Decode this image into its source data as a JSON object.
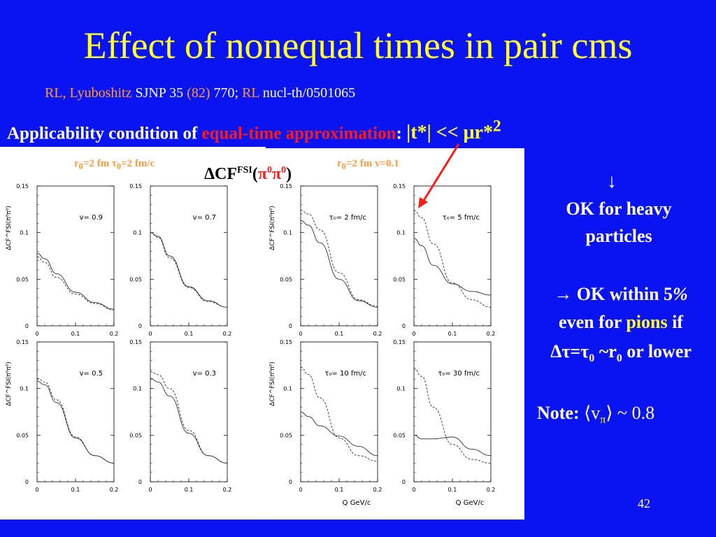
{
  "slide": {
    "title": "Effect of nonequal times in pair cms",
    "ref_part1": "RL, Lyuboshitz",
    "ref_part2": " SJNP 35 ",
    "ref_part3": "(82)",
    "ref_part4": " 770; ",
    "ref_part5": "RL",
    "ref_part6": " nucl-th/0501065",
    "cond_part1": "Applicability condition of ",
    "cond_part2": "equal-time approximation",
    "cond_part3": ":  ",
    "cond_part4": "|t*| << μr*",
    "cond_part4_sup": "2",
    "left_plot_title_a": "r",
    "left_plot_title_sub0": "0",
    "left_plot_title_b": "=2 fm  τ",
    "left_plot_title_sub1": "0",
    "left_plot_title_c": "=2 fm/c",
    "cf_label_a": "ΔCF",
    "cf_label_sup": "FSI",
    "cf_label_b": "(",
    "cf_label_pi1": "π",
    "cf_label_pi1_sup": "0",
    "cf_label_pi2": "π",
    "cf_label_pi2_sup": "0",
    "cf_label_c": ")",
    "right_plot_title_a": "r",
    "right_plot_title_sub0": "0",
    "right_plot_title_b": "=2 fm  v=0.1",
    "arrow_down": "↓",
    "ok_heavy_1": "OK for heavy",
    "ok_heavy_2": "particles",
    "ok5_1a": "→ OK within 5",
    "ok5_1b": "%",
    "ok5_2a": "even for ",
    "ok5_2b": "pions",
    "ok5_2c": " if",
    "ok5_3a": "Δτ=τ",
    "ok5_3sub": "0",
    "ok5_3b": " ~r",
    "ok5_3sub2": "0",
    "ok5_3c": " or lower",
    "note_a": "Note: ",
    "note_b": "⟨v",
    "note_sub": "π",
    "note_c": "⟩ ~ 0.8",
    "page_number": "42"
  },
  "chart_data": [
    {
      "type": "line",
      "panel": "v= 0.9",
      "x": [
        0,
        0.02,
        0.05,
        0.1,
        0.15,
        0.2
      ],
      "series": [
        {
          "style": "solid",
          "values": [
            0.078,
            0.072,
            0.056,
            0.036,
            0.025,
            0.018
          ]
        },
        {
          "style": "dashed",
          "values": [
            0.074,
            0.068,
            0.052,
            0.034,
            0.024,
            0.017
          ]
        }
      ],
      "ylim": [
        0,
        0.15
      ],
      "xlim": [
        0,
        0.2
      ],
      "yticks": [
        "0",
        "0.05",
        "0.1",
        "0.15"
      ],
      "xticks": [
        "0",
        "0.1",
        "0.2"
      ],
      "ylabel": "ΔCF^FSI(π⁰π⁰)"
    },
    {
      "type": "line",
      "panel": "v= 0.7",
      "x": [
        0,
        0.02,
        0.05,
        0.1,
        0.15,
        0.2
      ],
      "series": [
        {
          "style": "solid",
          "values": [
            0.1,
            0.096,
            0.075,
            0.042,
            0.027,
            0.02
          ]
        },
        {
          "style": "dashed",
          "values": [
            0.1,
            0.095,
            0.073,
            0.041,
            0.026,
            0.02
          ]
        }
      ],
      "ylim": [
        0,
        0.15
      ],
      "xlim": [
        0,
        0.2
      ],
      "yticks": [
        "0",
        "0.05",
        "0.1",
        "0.15"
      ],
      "xticks": [
        "0",
        "0.1",
        "0.2"
      ]
    },
    {
      "type": "line",
      "panel": "τ₀= 2 fm/c",
      "x": [
        0,
        0.02,
        0.05,
        0.1,
        0.15,
        0.2
      ],
      "series": [
        {
          "style": "solid",
          "values": [
            0.113,
            0.108,
            0.089,
            0.05,
            0.027,
            0.02
          ]
        },
        {
          "style": "dashed",
          "values": [
            0.124,
            0.12,
            0.103,
            0.057,
            0.028,
            0.021
          ]
        }
      ],
      "ylim": [
        0,
        0.15
      ],
      "xlim": [
        0,
        0.2
      ],
      "yticks": [
        "0",
        "0.05",
        "0.1",
        "0.15"
      ],
      "xticks": [
        "0",
        "0.1",
        "0.2"
      ],
      "ylabel": "ΔCF^FSI(π⁰π⁰)"
    },
    {
      "type": "line",
      "panel": "τ₀= 5 fm/c",
      "x": [
        0,
        0.02,
        0.05,
        0.1,
        0.15,
        0.2
      ],
      "series": [
        {
          "style": "solid",
          "values": [
            0.094,
            0.086,
            0.065,
            0.045,
            0.037,
            0.033
          ]
        },
        {
          "style": "dashed",
          "values": [
            0.124,
            0.116,
            0.088,
            0.046,
            0.028,
            0.02
          ]
        }
      ],
      "ylim": [
        0,
        0.15
      ],
      "xlim": [
        0,
        0.2
      ],
      "yticks": [
        "0",
        "0.05",
        "0.1",
        "0.15"
      ],
      "xticks": [
        "0",
        "0.1",
        "0.2"
      ]
    },
    {
      "type": "line",
      "panel": "v= 0.5",
      "x": [
        0,
        0.02,
        0.05,
        0.1,
        0.15,
        0.2
      ],
      "series": [
        {
          "style": "solid",
          "values": [
            0.108,
            0.104,
            0.085,
            0.047,
            0.028,
            0.02
          ]
        },
        {
          "style": "dashed",
          "values": [
            0.111,
            0.107,
            0.088,
            0.048,
            0.028,
            0.02
          ]
        }
      ],
      "ylim": [
        0,
        0.15
      ],
      "xlim": [
        0,
        0.2
      ],
      "yticks": [
        "0",
        "0.05",
        "0.1",
        "0.15"
      ],
      "xticks": [
        "0",
        "0.1",
        "0.2"
      ],
      "ylabel": "ΔCF^FSI(π⁰π⁰)"
    },
    {
      "type": "line",
      "panel": "v= 0.3",
      "x": [
        0,
        0.02,
        0.05,
        0.1,
        0.15,
        0.2
      ],
      "series": [
        {
          "style": "solid",
          "values": [
            0.111,
            0.107,
            0.092,
            0.052,
            0.028,
            0.02
          ]
        },
        {
          "style": "dashed",
          "values": [
            0.118,
            0.115,
            0.1,
            0.055,
            0.028,
            0.02
          ]
        }
      ],
      "ylim": [
        0,
        0.15
      ],
      "xlim": [
        0,
        0.2
      ],
      "yticks": [
        "0",
        "0.05",
        "0.1",
        "0.15"
      ],
      "xticks": [
        "0",
        "0.1",
        "0.2"
      ]
    },
    {
      "type": "line",
      "panel": "τ₀= 10 fm/c",
      "x": [
        0,
        0.02,
        0.05,
        0.1,
        0.15,
        0.2
      ],
      "series": [
        {
          "style": "solid",
          "values": [
            0.075,
            0.07,
            0.06,
            0.049,
            0.038,
            0.028
          ]
        },
        {
          "style": "dashed",
          "values": [
            0.123,
            0.115,
            0.09,
            0.047,
            0.028,
            0.022
          ]
        }
      ],
      "ylim": [
        0,
        0.15
      ],
      "xlim": [
        0,
        0.2
      ],
      "yticks": [
        "0",
        "0.05",
        "0.1",
        "0.15"
      ],
      "xticks": [
        "0",
        "0.1",
        "0.2"
      ],
      "xlabel": "Q  GeV/c",
      "ylabel": "ΔCF^FSI(π⁰π⁰)"
    },
    {
      "type": "line",
      "panel": "τ₀= 30 fm/c",
      "x": [
        0,
        0.02,
        0.05,
        0.1,
        0.15,
        0.2
      ],
      "series": [
        {
          "style": "solid",
          "values": [
            0.05,
            0.046,
            0.046,
            0.048,
            0.035,
            0.028
          ]
        },
        {
          "style": "dashed",
          "values": [
            0.122,
            0.113,
            0.08,
            0.04,
            0.024,
            0.02
          ]
        }
      ],
      "ylim": [
        0,
        0.15
      ],
      "xlim": [
        0,
        0.2
      ],
      "yticks": [
        "0",
        "0.05",
        "0.1",
        "0.15"
      ],
      "xticks": [
        "0",
        "0.1",
        "0.2"
      ],
      "xlabel": "Q  GeV/c"
    }
  ]
}
